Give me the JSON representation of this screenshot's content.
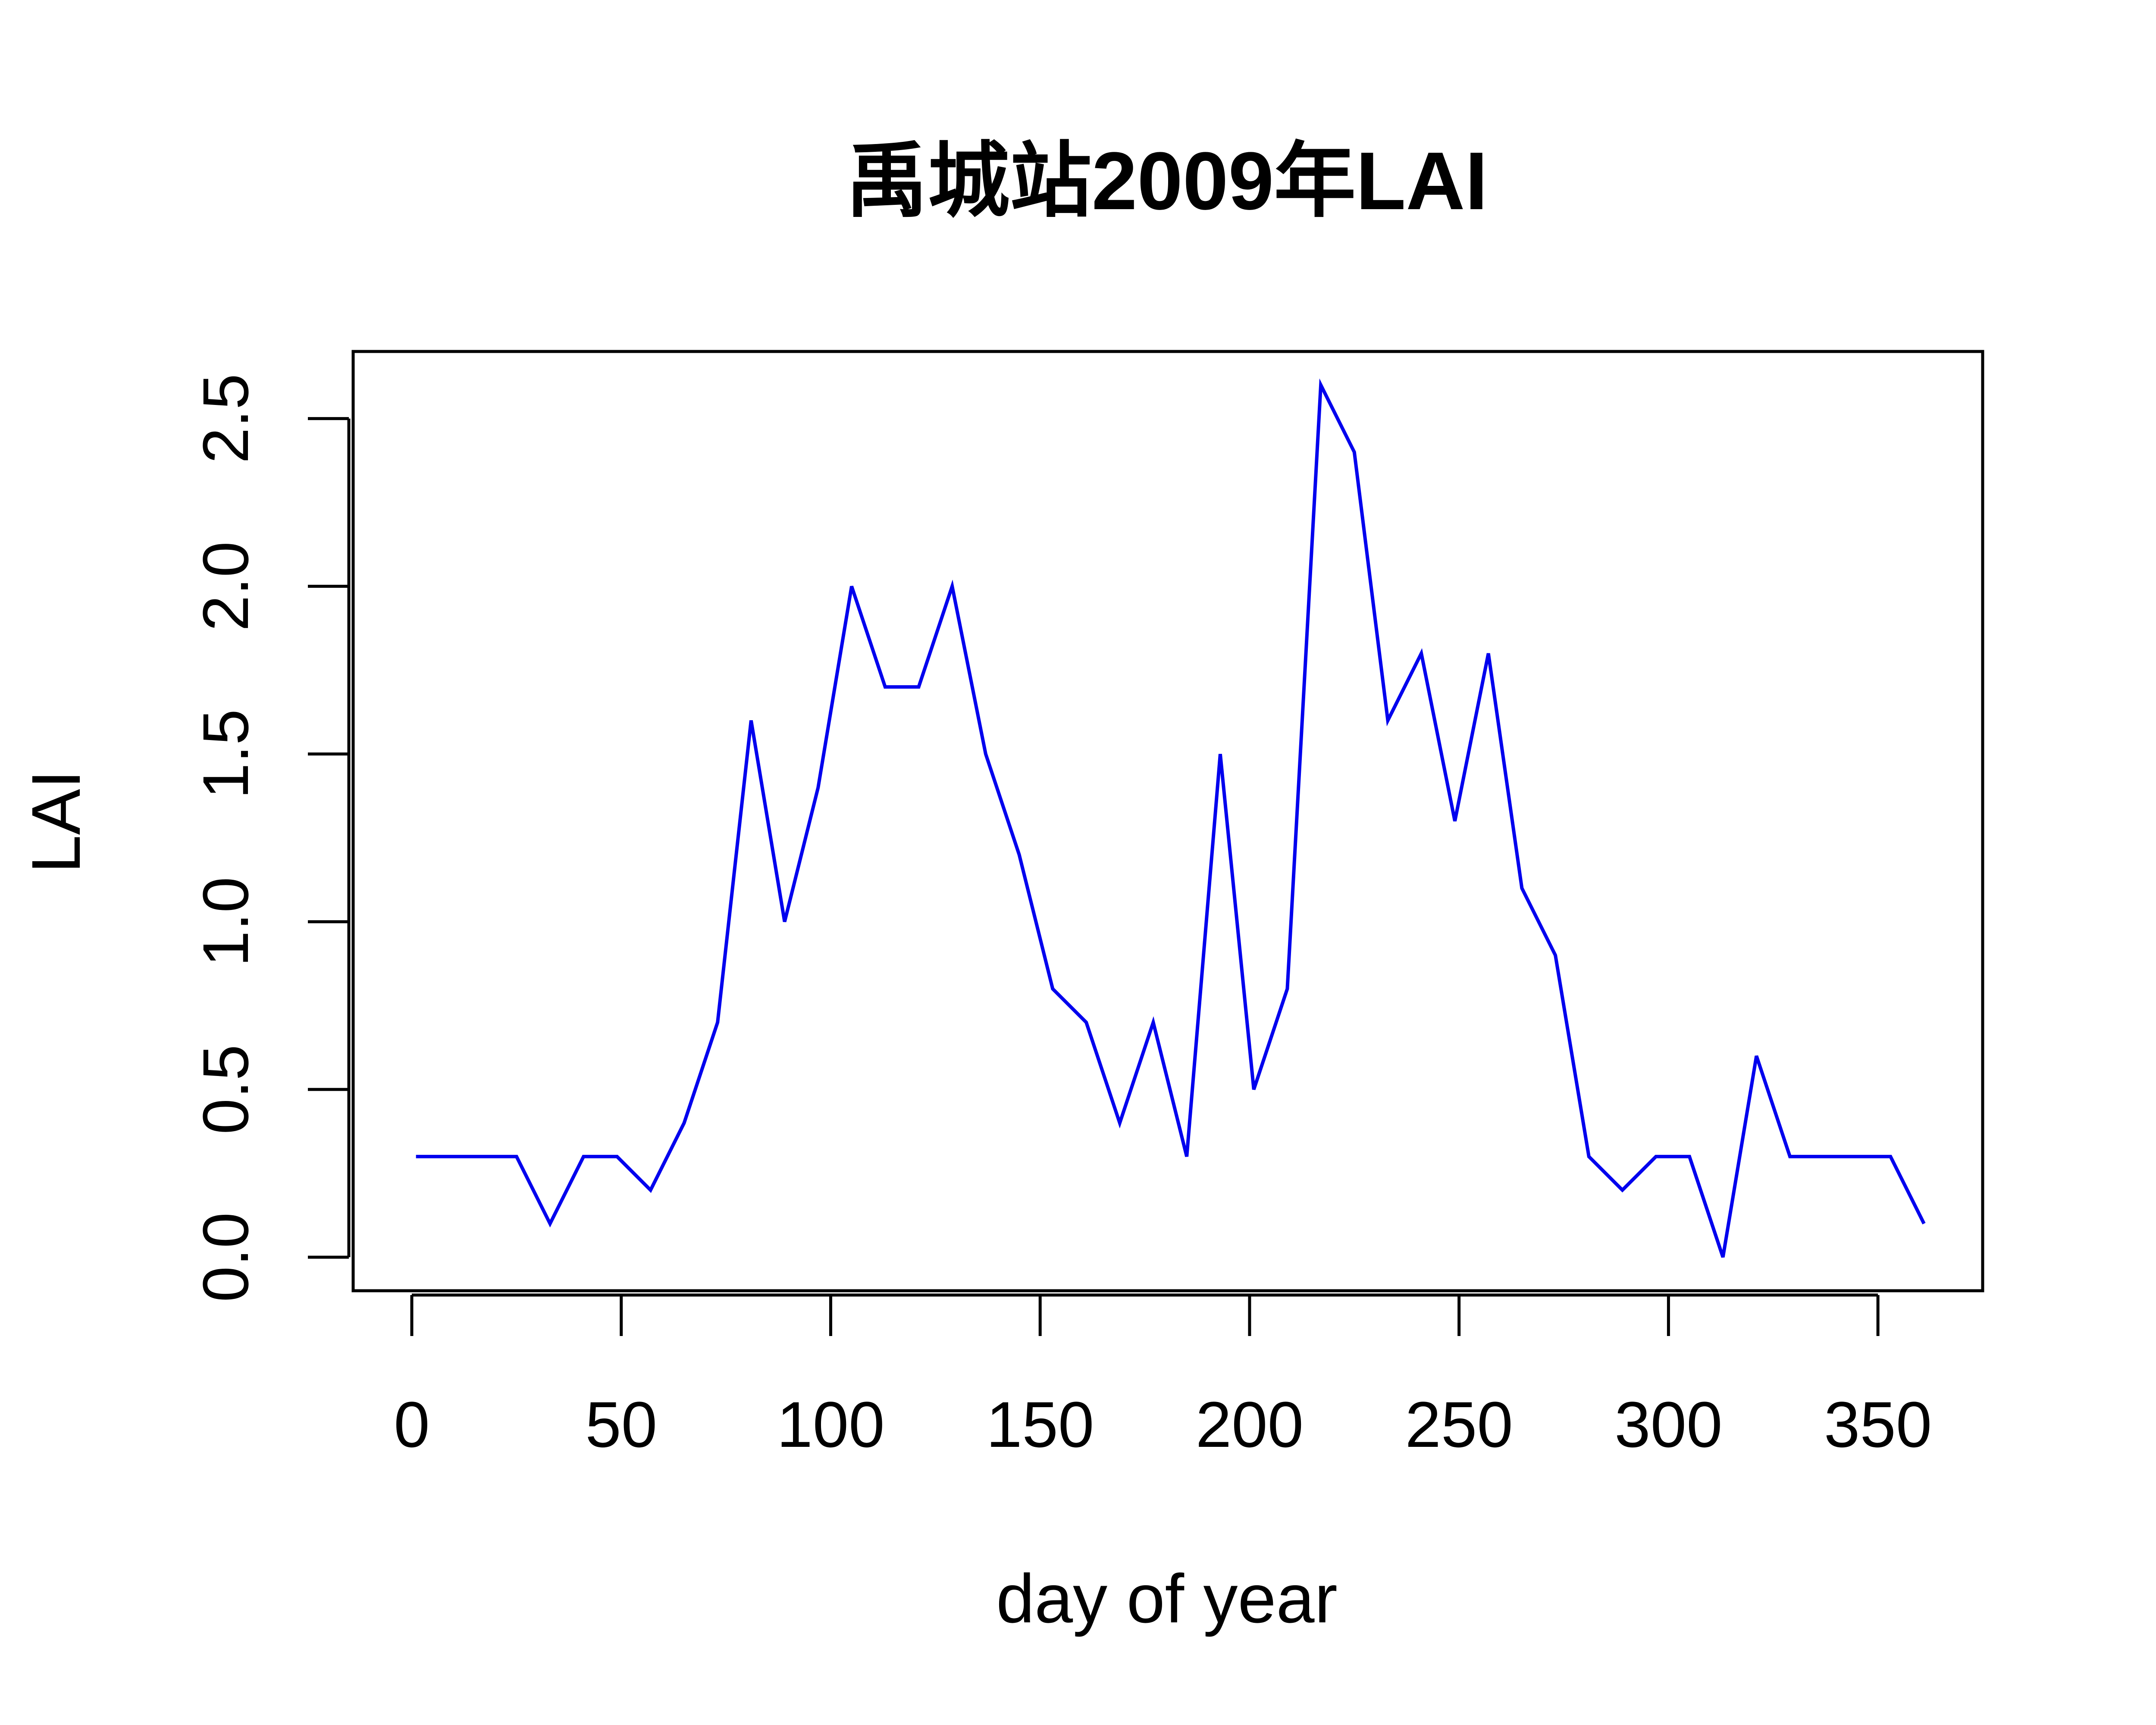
{
  "chart_data": {
    "type": "line",
    "title": "禹城站2009年LAI",
    "xlabel": "day of year",
    "ylabel": "LAI",
    "xlim": [
      -14,
      375
    ],
    "ylim": [
      -0.1,
      2.7
    ],
    "xticks": [
      0,
      50,
      100,
      150,
      200,
      250,
      300,
      350
    ],
    "xtick_labels": [
      "0",
      "50",
      "100",
      "150",
      "200",
      "250",
      "300",
      "350"
    ],
    "yticks": [
      0,
      0.5,
      1,
      1.5,
      2,
      2.5
    ],
    "ytick_labels": [
      "0.0",
      "0.5",
      "1.0",
      "1.5",
      "2.0",
      "2.5"
    ],
    "grid": false,
    "series": [
      {
        "color": "#0000ee",
        "x": [
          1,
          9,
          17,
          25,
          33,
          41,
          49,
          57,
          65,
          73,
          81,
          89,
          97,
          105,
          113,
          121,
          129,
          137,
          145,
          153,
          161,
          169,
          177,
          185,
          193,
          201,
          209,
          217,
          225,
          233,
          241,
          249,
          257,
          265,
          273,
          281,
          289,
          297,
          305,
          313,
          321,
          329,
          337,
          345,
          353,
          361
        ],
        "y": [
          0.3,
          0.3,
          0.3,
          0.3,
          0.1,
          0.3,
          0.3,
          0.2,
          0.4,
          0.7,
          1.6,
          1.0,
          1.4,
          2.0,
          1.7,
          1.7,
          2.0,
          1.5,
          1.2,
          0.8,
          0.7,
          0.4,
          0.7,
          0.3,
          1.5,
          0.5,
          0.8,
          2.6,
          2.4,
          1.6,
          1.8,
          1.3,
          1.8,
          1.1,
          0.9,
          0.3,
          0.2,
          0.3,
          0.3,
          0.0,
          0.6,
          0.3,
          0.3,
          0.3,
          0.3,
          0.1
        ]
      }
    ]
  }
}
